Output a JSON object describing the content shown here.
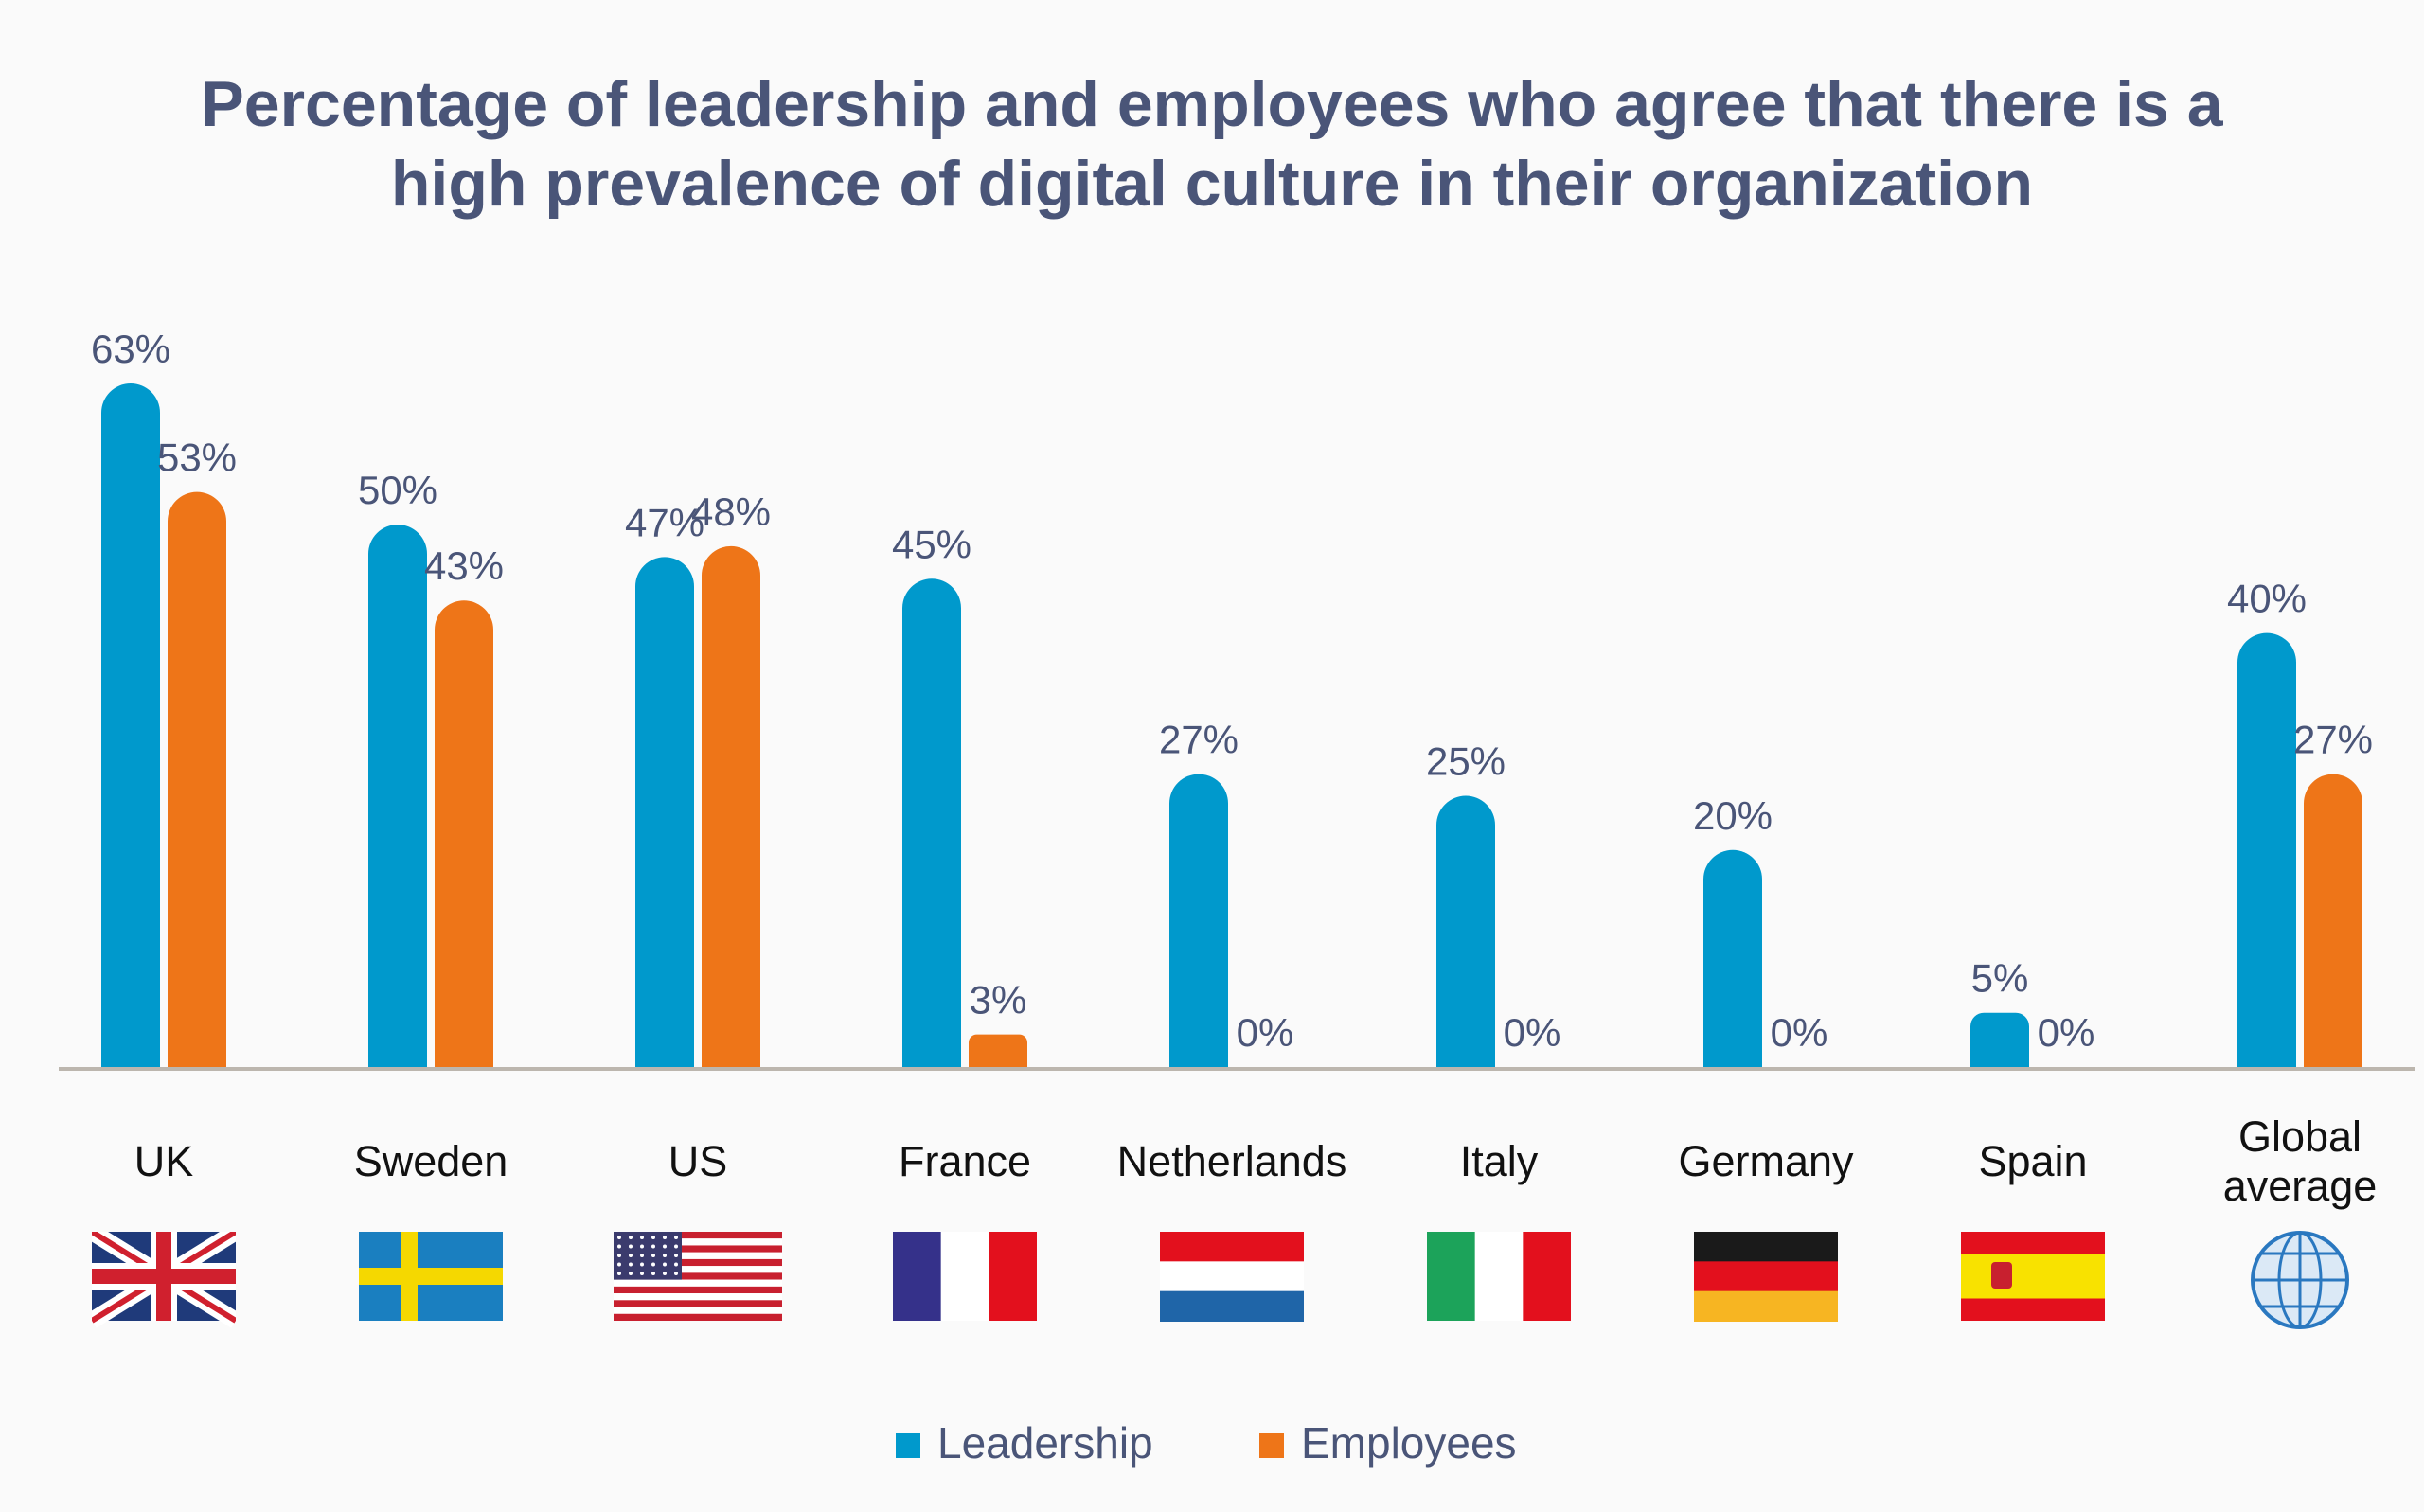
{
  "chart_data": {
    "type": "bar",
    "title": "Percentage of leadership and employees who agree that there is a high prevalence of digital culture in their organization",
    "categories": [
      "UK",
      "Sweden",
      "US",
      "France",
      "Netherlands",
      "Italy",
      "Germany",
      "Spain",
      "Global average"
    ],
    "series": [
      {
        "name": "Leadership",
        "color": "#0099cc",
        "values": [
          63,
          50,
          47,
          45,
          27,
          25,
          20,
          5,
          40
        ],
        "value_labels": [
          "63%",
          "50%",
          "47%",
          "45%",
          "27%",
          "25%",
          "20%",
          "5%",
          "40%"
        ]
      },
      {
        "name": "Employees",
        "color": "#ee7518",
        "values": [
          53,
          43,
          48,
          3,
          0,
          0,
          0,
          0,
          27
        ],
        "value_labels": [
          "53%",
          "43%",
          "48%",
          "3%",
          "0%",
          "0%",
          "0%",
          "0%",
          "27%"
        ]
      }
    ]
  }
}
